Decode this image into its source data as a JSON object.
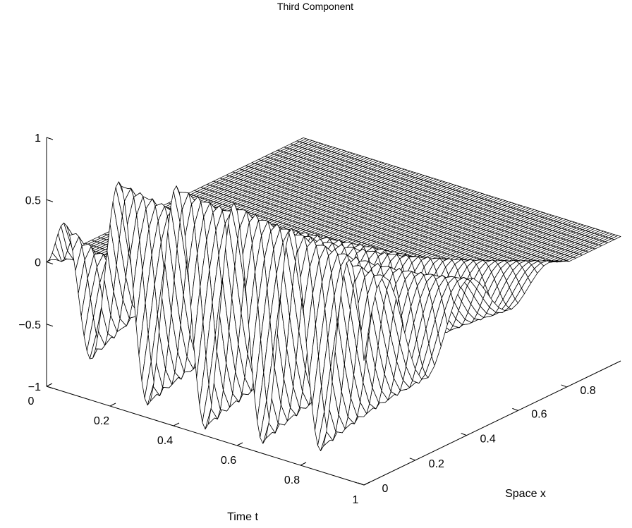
{
  "chart_data": {
    "type": "surface",
    "title": "Third Component",
    "xlabel": "Time t",
    "ylabel": "Space x",
    "zlabel": "",
    "x_range": [
      0,
      1
    ],
    "y_range": [
      0,
      1
    ],
    "z_range": [
      -1,
      1
    ],
    "x_ticks": [
      "0",
      "0.2",
      "0.4",
      "0.6",
      "0.8",
      "1"
    ],
    "y_ticks": [
      "0",
      "0.2",
      "0.4",
      "0.6",
      "0.8"
    ],
    "z_ticks": [
      "1",
      "0.5",
      "0",
      "−0.5",
      "−1"
    ],
    "style": "wireframe mesh, black lines on white",
    "description_of_data": "traveling wave: zero before t≈x, oscillating crests up to about 1 and troughs down to about -0.95 for t between ~0.1 and ~0.95 near small x, flattening to 0 for larger x"
  }
}
